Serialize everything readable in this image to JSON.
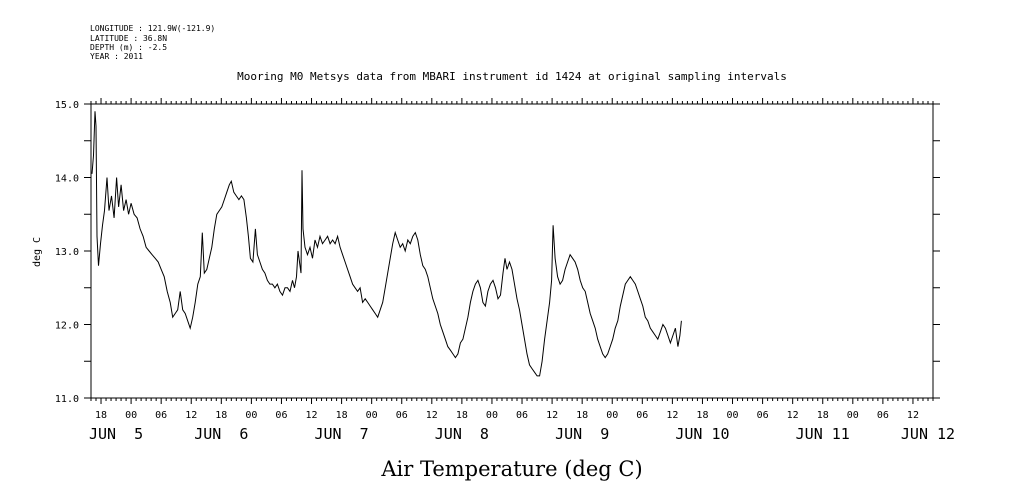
{
  "header": {
    "lines": [
      "LONGITUDE : 121.9W(-121.9)",
      "LATITUDE : 36.8N",
      "DEPTH (m) : -2.5",
      "YEAR : 2011"
    ]
  },
  "chart_data": {
    "type": "line",
    "title": "Mooring M0 Metsys data from MBARI instrument id 1424 at original sampling intervals",
    "xlabel": "Air Temperature (deg C)",
    "ylabel": "deg C",
    "ylim": [
      11.0,
      15.0
    ],
    "yticks": [
      11.0,
      12.0,
      13.0,
      14.0,
      15.0
    ],
    "yticklabels": [
      "11.0",
      "12.0",
      "13.0",
      "14.0",
      "15.0"
    ],
    "xlim": [
      100.0,
      268.0
    ],
    "hour_ticks": [
      {
        "x": 102,
        "label": "18"
      },
      {
        "x": 108,
        "label": "00"
      },
      {
        "x": 114,
        "label": "06"
      },
      {
        "x": 120,
        "label": "12"
      },
      {
        "x": 126,
        "label": "18"
      },
      {
        "x": 132,
        "label": "00"
      },
      {
        "x": 138,
        "label": "06"
      },
      {
        "x": 144,
        "label": "12"
      },
      {
        "x": 150,
        "label": "18"
      },
      {
        "x": 156,
        "label": "00"
      },
      {
        "x": 162,
        "label": "06"
      },
      {
        "x": 168,
        "label": "12"
      },
      {
        "x": 174,
        "label": "18"
      },
      {
        "x": 180,
        "label": "00"
      },
      {
        "x": 186,
        "label": "06"
      },
      {
        "x": 192,
        "label": "12"
      },
      {
        "x": 198,
        "label": "18"
      },
      {
        "x": 204,
        "label": "00"
      },
      {
        "x": 210,
        "label": "06"
      },
      {
        "x": 216,
        "label": "12"
      },
      {
        "x": 222,
        "label": "18"
      },
      {
        "x": 228,
        "label": "00"
      },
      {
        "x": 234,
        "label": "06"
      },
      {
        "x": 240,
        "label": "12"
      },
      {
        "x": 246,
        "label": "18"
      },
      {
        "x": 252,
        "label": "00"
      },
      {
        "x": 258,
        "label": "06"
      },
      {
        "x": 264,
        "label": "12"
      }
    ],
    "day_labels": [
      {
        "x": 105,
        "label": "JUN  5"
      },
      {
        "x": 126,
        "label": "JUN  6"
      },
      {
        "x": 150,
        "label": "JUN  7"
      },
      {
        "x": 174,
        "label": "JUN  8"
      },
      {
        "x": 198,
        "label": "JUN  9"
      },
      {
        "x": 222,
        "label": "JUN 10"
      },
      {
        "x": 246,
        "label": "JUN 11"
      },
      {
        "x": 267,
        "label": "JUN 12"
      }
    ],
    "series": [
      {
        "values": [
          [
            100.2,
            14.05
          ],
          [
            100.5,
            14.3
          ],
          [
            100.8,
            14.9
          ],
          [
            101.0,
            14.7
          ],
          [
            101.2,
            13.2
          ],
          [
            101.5,
            12.8
          ],
          [
            101.9,
            13.1
          ],
          [
            102.3,
            13.35
          ],
          [
            102.7,
            13.55
          ],
          [
            103.2,
            14.0
          ],
          [
            103.6,
            13.55
          ],
          [
            104.1,
            13.75
          ],
          [
            104.6,
            13.45
          ],
          [
            105.1,
            14.0
          ],
          [
            105.5,
            13.6
          ],
          [
            106.0,
            13.9
          ],
          [
            106.5,
            13.55
          ],
          [
            107.0,
            13.7
          ],
          [
            107.5,
            13.5
          ],
          [
            108.0,
            13.65
          ],
          [
            108.6,
            13.5
          ],
          [
            109.2,
            13.45
          ],
          [
            109.8,
            13.3
          ],
          [
            110.4,
            13.2
          ],
          [
            111.0,
            13.05
          ],
          [
            111.6,
            13.0
          ],
          [
            112.2,
            12.95
          ],
          [
            112.8,
            12.9
          ],
          [
            113.4,
            12.85
          ],
          [
            114.0,
            12.75
          ],
          [
            114.6,
            12.65
          ],
          [
            115.2,
            12.45
          ],
          [
            115.8,
            12.3
          ],
          [
            116.3,
            12.1
          ],
          [
            116.8,
            12.15
          ],
          [
            117.3,
            12.2
          ],
          [
            117.8,
            12.45
          ],
          [
            118.3,
            12.2
          ],
          [
            118.8,
            12.15
          ],
          [
            119.3,
            12.05
          ],
          [
            119.8,
            11.95
          ],
          [
            120.3,
            12.1
          ],
          [
            120.8,
            12.3
          ],
          [
            121.3,
            12.55
          ],
          [
            121.8,
            12.65
          ],
          [
            122.2,
            13.25
          ],
          [
            122.6,
            12.7
          ],
          [
            123.1,
            12.75
          ],
          [
            123.6,
            12.9
          ],
          [
            124.1,
            13.05
          ],
          [
            124.6,
            13.3
          ],
          [
            125.1,
            13.5
          ],
          [
            125.6,
            13.55
          ],
          [
            126.1,
            13.6
          ],
          [
            126.6,
            13.7
          ],
          [
            127.1,
            13.8
          ],
          [
            127.6,
            13.9
          ],
          [
            128.0,
            13.95
          ],
          [
            128.5,
            13.8
          ],
          [
            129.0,
            13.75
          ],
          [
            129.5,
            13.7
          ],
          [
            130.0,
            13.75
          ],
          [
            130.5,
            13.7
          ],
          [
            131.0,
            13.45
          ],
          [
            131.4,
            13.2
          ],
          [
            131.8,
            12.9
          ],
          [
            132.3,
            12.85
          ],
          [
            132.8,
            13.3
          ],
          [
            133.2,
            12.95
          ],
          [
            133.7,
            12.85
          ],
          [
            134.2,
            12.75
          ],
          [
            134.7,
            12.7
          ],
          [
            135.2,
            12.6
          ],
          [
            135.7,
            12.55
          ],
          [
            136.2,
            12.55
          ],
          [
            136.7,
            12.5
          ],
          [
            137.2,
            12.55
          ],
          [
            137.7,
            12.45
          ],
          [
            138.2,
            12.4
          ],
          [
            138.7,
            12.5
          ],
          [
            139.2,
            12.5
          ],
          [
            139.7,
            12.45
          ],
          [
            140.2,
            12.6
          ],
          [
            140.6,
            12.5
          ],
          [
            141.0,
            12.65
          ],
          [
            141.3,
            13.0
          ],
          [
            141.6,
            12.85
          ],
          [
            141.9,
            12.7
          ],
          [
            142.1,
            14.1
          ],
          [
            142.3,
            13.3
          ],
          [
            142.7,
            13.05
          ],
          [
            143.2,
            12.95
          ],
          [
            143.7,
            13.05
          ],
          [
            144.2,
            12.9
          ],
          [
            144.7,
            13.15
          ],
          [
            145.2,
            13.05
          ],
          [
            145.7,
            13.2
          ],
          [
            146.2,
            13.1
          ],
          [
            146.7,
            13.15
          ],
          [
            147.2,
            13.2
          ],
          [
            147.7,
            13.1
          ],
          [
            148.2,
            13.15
          ],
          [
            148.7,
            13.1
          ],
          [
            149.2,
            13.2
          ],
          [
            149.7,
            13.05
          ],
          [
            150.2,
            12.95
          ],
          [
            150.7,
            12.85
          ],
          [
            151.2,
            12.75
          ],
          [
            151.7,
            12.65
          ],
          [
            152.2,
            12.55
          ],
          [
            152.7,
            12.5
          ],
          [
            153.2,
            12.45
          ],
          [
            153.7,
            12.5
          ],
          [
            154.2,
            12.3
          ],
          [
            154.7,
            12.35
          ],
          [
            155.2,
            12.3
          ],
          [
            155.7,
            12.25
          ],
          [
            156.2,
            12.2
          ],
          [
            156.7,
            12.15
          ],
          [
            157.2,
            12.1
          ],
          [
            157.7,
            12.2
          ],
          [
            158.2,
            12.3
          ],
          [
            158.7,
            12.5
          ],
          [
            159.2,
            12.7
          ],
          [
            159.7,
            12.9
          ],
          [
            160.2,
            13.1
          ],
          [
            160.7,
            13.25
          ],
          [
            161.2,
            13.15
          ],
          [
            161.7,
            13.05
          ],
          [
            162.2,
            13.1
          ],
          [
            162.7,
            13.0
          ],
          [
            163.2,
            13.15
          ],
          [
            163.7,
            13.1
          ],
          [
            164.2,
            13.2
          ],
          [
            164.7,
            13.25
          ],
          [
            165.2,
            13.15
          ],
          [
            165.7,
            12.95
          ],
          [
            166.2,
            12.8
          ],
          [
            166.7,
            12.75
          ],
          [
            167.2,
            12.65
          ],
          [
            167.7,
            12.5
          ],
          [
            168.2,
            12.35
          ],
          [
            168.7,
            12.25
          ],
          [
            169.2,
            12.15
          ],
          [
            169.7,
            12.0
          ],
          [
            170.2,
            11.9
          ],
          [
            170.7,
            11.8
          ],
          [
            171.2,
            11.7
          ],
          [
            171.7,
            11.65
          ],
          [
            172.2,
            11.6
          ],
          [
            172.7,
            11.55
          ],
          [
            173.2,
            11.6
          ],
          [
            173.7,
            11.75
          ],
          [
            174.2,
            11.8
          ],
          [
            174.7,
            11.95
          ],
          [
            175.2,
            12.1
          ],
          [
            175.7,
            12.3
          ],
          [
            176.2,
            12.45
          ],
          [
            176.7,
            12.55
          ],
          [
            177.2,
            12.6
          ],
          [
            177.7,
            12.5
          ],
          [
            178.2,
            12.3
          ],
          [
            178.7,
            12.25
          ],
          [
            179.2,
            12.45
          ],
          [
            179.7,
            12.55
          ],
          [
            180.2,
            12.6
          ],
          [
            180.7,
            12.5
          ],
          [
            181.2,
            12.35
          ],
          [
            181.7,
            12.4
          ],
          [
            182.2,
            12.7
          ],
          [
            182.6,
            12.9
          ],
          [
            183.0,
            12.75
          ],
          [
            183.5,
            12.85
          ],
          [
            184.0,
            12.75
          ],
          [
            184.5,
            12.55
          ],
          [
            185.0,
            12.35
          ],
          [
            185.5,
            12.2
          ],
          [
            186.0,
            12.0
          ],
          [
            186.5,
            11.8
          ],
          [
            187.0,
            11.6
          ],
          [
            187.5,
            11.45
          ],
          [
            188.0,
            11.4
          ],
          [
            188.5,
            11.35
          ],
          [
            189.0,
            11.3
          ],
          [
            189.5,
            11.3
          ],
          [
            190.0,
            11.5
          ],
          [
            190.5,
            11.8
          ],
          [
            191.0,
            12.05
          ],
          [
            191.5,
            12.3
          ],
          [
            191.9,
            12.6
          ],
          [
            192.2,
            13.35
          ],
          [
            192.6,
            12.9
          ],
          [
            193.1,
            12.65
          ],
          [
            193.6,
            12.55
          ],
          [
            194.1,
            12.6
          ],
          [
            194.6,
            12.75
          ],
          [
            195.1,
            12.85
          ],
          [
            195.6,
            12.95
          ],
          [
            196.1,
            12.9
          ],
          [
            196.6,
            12.85
          ],
          [
            197.1,
            12.75
          ],
          [
            197.6,
            12.6
          ],
          [
            198.1,
            12.5
          ],
          [
            198.6,
            12.45
          ],
          [
            199.1,
            12.3
          ],
          [
            199.6,
            12.15
          ],
          [
            200.1,
            12.05
          ],
          [
            200.6,
            11.95
          ],
          [
            201.1,
            11.8
          ],
          [
            201.6,
            11.7
          ],
          [
            202.1,
            11.6
          ],
          [
            202.6,
            11.55
          ],
          [
            203.1,
            11.6
          ],
          [
            203.6,
            11.7
          ],
          [
            204.1,
            11.8
          ],
          [
            204.6,
            11.95
          ],
          [
            205.1,
            12.05
          ],
          [
            205.6,
            12.25
          ],
          [
            206.1,
            12.4
          ],
          [
            206.6,
            12.55
          ],
          [
            207.1,
            12.6
          ],
          [
            207.6,
            12.65
          ],
          [
            208.1,
            12.6
          ],
          [
            208.6,
            12.55
          ],
          [
            209.1,
            12.45
          ],
          [
            209.6,
            12.35
          ],
          [
            210.1,
            12.25
          ],
          [
            210.6,
            12.1
          ],
          [
            211.1,
            12.05
          ],
          [
            211.6,
            11.95
          ],
          [
            212.1,
            11.9
          ],
          [
            212.6,
            11.85
          ],
          [
            213.1,
            11.8
          ],
          [
            213.6,
            11.9
          ],
          [
            214.1,
            12.0
          ],
          [
            214.6,
            11.95
          ],
          [
            215.1,
            11.85
          ],
          [
            215.6,
            11.75
          ],
          [
            216.1,
            11.85
          ],
          [
            216.6,
            11.95
          ],
          [
            217.1,
            11.7
          ],
          [
            217.5,
            11.85
          ],
          [
            217.8,
            12.05
          ]
        ]
      }
    ]
  }
}
